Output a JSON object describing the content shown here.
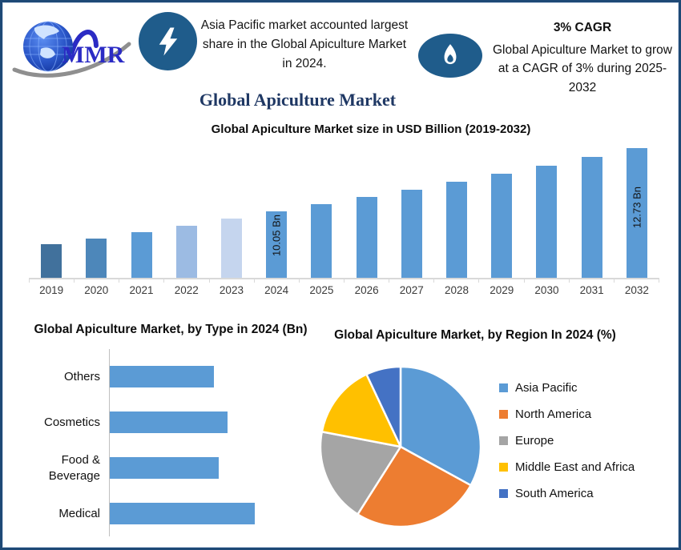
{
  "header": {
    "logo_text": "MMR",
    "highlight_left": "Asia Pacific market accounted largest share in the Global Apiculture Market in 2024.",
    "cagr_title": "3% CAGR",
    "cagr_text": "Global Apiculture Market to grow at a CAGR of 3% during 2025-2032"
  },
  "main_title": "Global Apiculture Market",
  "colors": {
    "accent_bar_blue": "#5B9BD5",
    "badge_blue": "#1F5C8B",
    "title_navy": "#1F3864",
    "border_navy": "#1E4976",
    "axis_gray": "#D9D9D9",
    "logo_blue": "#2B2BC4"
  },
  "chart_data": [
    {
      "type": "bar",
      "title": "Global Apiculture Market size in USD Billion (2019-2032)",
      "categories": [
        "2019",
        "2020",
        "2021",
        "2022",
        "2023",
        "2024",
        "2025",
        "2026",
        "2027",
        "2028",
        "2029",
        "2030",
        "2031",
        "2032"
      ],
      "values": [
        8.67,
        8.93,
        9.2,
        9.47,
        9.76,
        10.05,
        10.35,
        10.66,
        10.98,
        11.31,
        11.65,
        12.0,
        12.36,
        12.73
      ],
      "data_labels": {
        "2024": "10.05 Bn",
        "2032": "12.73 Bn"
      },
      "bar_colors": [
        "#41719C",
        "#4D87BA",
        "#5B9BD5",
        "#9CBBE3",
        "#C5D5EE",
        "#5B9BD5",
        "#5B9BD5",
        "#5B9BD5",
        "#5B9BD5",
        "#5B9BD5",
        "#5B9BD5",
        "#5B9BD5",
        "#5B9BD5",
        "#5B9BD5"
      ],
      "xlabel": "",
      "ylabel": "USD Billion",
      "ylim": [
        7.26,
        13.0
      ],
      "grid": false,
      "legend": false
    },
    {
      "type": "bar",
      "orientation": "horizontal",
      "title": "Global Apiculture Market, by Type in 2024 (Bn)",
      "categories": [
        "Others",
        "Cosmetics",
        "Food & Beverage",
        "Medical"
      ],
      "values": [
        2.3,
        2.6,
        2.4,
        3.2
      ],
      "color": "#5B9BD5",
      "xlim": [
        0,
        4.4
      ],
      "grid": false,
      "legend": false
    },
    {
      "type": "pie",
      "title": "Global Apiculture Market, by Region In 2024 (%)",
      "labels": [
        "Asia Pacific",
        "North America",
        "Europe",
        "Middle East and Africa",
        "South America"
      ],
      "values": [
        33,
        26,
        19,
        15,
        7
      ],
      "colors": [
        "#5B9BD5",
        "#ED7D31",
        "#A5A5A5",
        "#FFC000",
        "#4472C4"
      ],
      "legend_position": "right",
      "start_angle_deg": -90,
      "direction": "clockwise"
    }
  ]
}
